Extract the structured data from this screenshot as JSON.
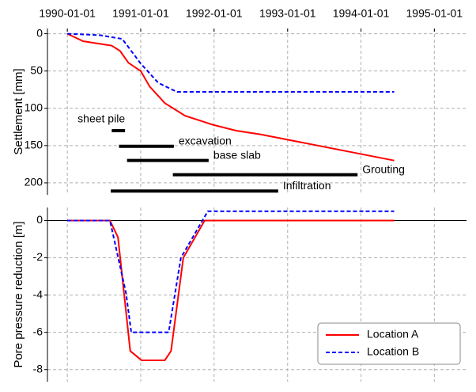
{
  "chart_data": [
    {
      "type": "line",
      "ylabel": "Settlement [mm]",
      "xlim": [
        "1989-09-24",
        "1995-06-10"
      ],
      "xticks": [
        "1990-01-01",
        "1991-01-01",
        "1992-01-01",
        "1993-01-01",
        "1994-01-01",
        "1995-01-01"
      ],
      "ylim": [
        216,
        -7
      ],
      "yticks": [
        0,
        50,
        100,
        150,
        200
      ],
      "grid": true,
      "series": [
        {
          "color": "#ff0000",
          "dash": false,
          "x": [
            "1990-01-01",
            "1990-03-20",
            "1990-08-10",
            "1990-09-20",
            "1990-11-01",
            "1991-01-01",
            "1991-02-15",
            "1991-05-01",
            "1991-08-10",
            "1991-12-25",
            "1992-04-20",
            "1992-08-20",
            "1994-06-15"
          ],
          "values": [
            0,
            10,
            16,
            23,
            39,
            50,
            71,
            93,
            110,
            122,
            130,
            135,
            170
          ]
        },
        {
          "color": "#0000ff",
          "dash": true,
          "x": [
            "1990-01-01",
            "1990-06-15",
            "1990-10-01",
            "1990-11-01",
            "1991-01-01",
            "1991-03-30",
            "1991-06-15",
            "1991-07-01",
            "1994-06-15"
          ],
          "values": [
            0,
            2,
            7,
            18,
            40,
            66,
            76,
            78,
            78
          ]
        }
      ],
      "annotations": [
        {
          "text": "sheet pile",
          "start": "1990-08-10",
          "end": "1990-10-15",
          "y": 130
        },
        {
          "text": "excavation",
          "start": "1990-09-15",
          "end": "1991-06-15",
          "y": 151
        },
        {
          "text": "base slab",
          "start": "1990-10-25",
          "end": "1991-12-05",
          "y": 170
        },
        {
          "text": "Grouting",
          "start": "1991-06-10",
          "end": "1993-12-15",
          "y": 189
        },
        {
          "text": "Infiltration",
          "start": "1990-08-05",
          "end": "1992-11-15",
          "y": 211
        }
      ]
    },
    {
      "type": "line",
      "ylabel": "Pore pressure reduction [m]",
      "xlim": [
        "1989-09-24",
        "1995-06-10"
      ],
      "ylim": [
        -8.65,
        0.7
      ],
      "yticks": [
        0,
        -2,
        -4,
        -6,
        -8
      ],
      "grid": true,
      "legend": "lower right",
      "series": [
        {
          "name": "Location A",
          "color": "#ff0000",
          "dash": false,
          "x": [
            "1990-01-01",
            "1990-08-01",
            "1990-09-10",
            "1990-11-10",
            "1991-01-05",
            "1991-05-01",
            "1991-06-01",
            "1991-08-01",
            "1991-11-15",
            "1994-06-15"
          ],
          "values": [
            0,
            0,
            -0.9,
            -7,
            -7.5,
            -7.5,
            -7,
            -2,
            0,
            0
          ]
        },
        {
          "name": "Location B",
          "color": "#0000ff",
          "dash": true,
          "x": [
            "1990-01-01",
            "1990-08-01",
            "1990-10-20",
            "1990-11-15",
            "1991-05-20",
            "1991-07-20",
            "1991-12-01",
            "1994-06-15"
          ],
          "values": [
            0,
            0,
            -3.9,
            -6,
            -6,
            -2,
            0.5,
            0.5
          ]
        }
      ]
    }
  ]
}
